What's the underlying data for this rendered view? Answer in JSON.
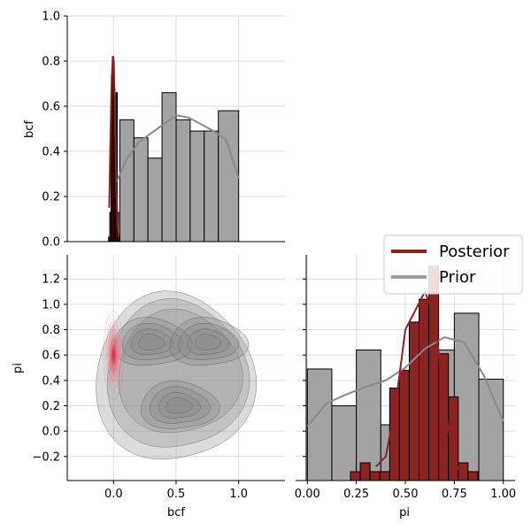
{
  "chart_data": {
    "type": "pairplot",
    "legend": {
      "placement": "right",
      "entries": [
        {
          "label": "Posterior",
          "color": "#8b2323"
        },
        {
          "label": "Prior",
          "color": "#8a8a8a"
        }
      ]
    },
    "grid": true,
    "panels": [
      {
        "id": "bcf_marginal",
        "type": "histogram+kde",
        "xlabel": "",
        "ylabel": "bcf",
        "xlim": [
          -0.37,
          1.37
        ],
        "ylim": [
          0,
          1.0
        ],
        "yticks": [
          0.0,
          0.2,
          0.4,
          0.6,
          0.8,
          1.0
        ],
        "prior_bins": {
          "edges": [
            0.05,
            0.1625,
            0.275,
            0.3875,
            0.5,
            0.6125,
            0.725,
            0.8375,
            1.0
          ],
          "values": [
            0.54,
            0.46,
            0.37,
            0.66,
            0.54,
            0.49,
            0.49,
            0.58
          ]
        },
        "prior_kde": {
          "x": [
            0.02,
            0.1,
            0.2,
            0.3,
            0.4,
            0.5,
            0.6,
            0.7,
            0.8,
            0.9,
            1.0
          ],
          "y": [
            0.26,
            0.36,
            0.44,
            0.48,
            0.52,
            0.56,
            0.55,
            0.52,
            0.49,
            0.45,
            0.28
          ]
        },
        "posterior_bins": {
          "edges": [
            -0.04,
            -0.03,
            -0.02,
            -0.01,
            0.0,
            0.01,
            0.02,
            0.03,
            0.04,
            0.05
          ],
          "values": [
            0.02,
            0.13,
            0.62,
            0.82,
            0.68,
            0.46,
            0.66,
            0.13,
            0.03
          ]
        },
        "posterior_kde": {
          "x": [
            -0.035,
            -0.025,
            -0.015,
            -0.005,
            0.002,
            0.01,
            0.02,
            0.03,
            0.04
          ],
          "y": [
            0.15,
            0.45,
            0.72,
            0.82,
            0.8,
            0.6,
            0.3,
            0.1,
            0.02
          ]
        }
      },
      {
        "id": "joint_bcf_pi",
        "type": "kde2d",
        "xlabel": "bcf",
        "ylabel": "pi",
        "xlim": [
          -0.37,
          1.37
        ],
        "ylim": [
          -0.39,
          1.39
        ],
        "xticks": [
          0.0,
          0.5,
          1.0
        ],
        "yticks": [
          -0.2,
          0.0,
          0.2,
          0.4,
          0.6,
          0.8,
          1.0,
          1.2
        ],
        "prior_modes": [
          {
            "x": 0.3,
            "y": 0.7
          },
          {
            "x": 0.75,
            "y": 0.7
          },
          {
            "x": 0.52,
            "y": 0.2
          }
        ],
        "posterior_mode": {
          "x": 0.0,
          "y": 0.6
        }
      },
      {
        "id": "pi_marginal",
        "type": "histogram+kde",
        "xlabel": "pi",
        "ylabel": "",
        "xlim": [
          -0.06,
          1.06
        ],
        "ylim": [
          -0.39,
          1.39
        ],
        "xticks": [
          0.0,
          0.25,
          0.5,
          0.75,
          1.0
        ],
        "prior_bins": {
          "edges": [
            0.0,
            0.125,
            0.25,
            0.375,
            0.5,
            0.625,
            0.75,
            0.875,
            1.0
          ],
          "values": [
            0.49,
            0.2,
            0.64,
            0.05,
            0.42,
            0.64,
            0.93,
            0.41
          ]
        },
        "prior_kde": {
          "x": [
            0.0,
            0.1,
            0.2,
            0.3,
            0.4,
            0.5,
            0.6,
            0.7,
            0.8,
            0.9,
            1.0
          ],
          "y": [
            0.04,
            0.22,
            0.29,
            0.35,
            0.4,
            0.5,
            0.65,
            0.74,
            0.7,
            0.44,
            0.08
          ]
        },
        "posterior_bins": {
          "edges": [
            0.22,
            0.27,
            0.32,
            0.37,
            0.42,
            0.47,
            0.52,
            0.57,
            0.62,
            0.67,
            0.72,
            0.77,
            0.82,
            0.87
          ],
          "values": [
            -0.32,
            -0.25,
            -0.32,
            -0.32,
            0.34,
            0.48,
            0.86,
            1.04,
            1.3,
            0.61,
            0.27,
            -0.25,
            -0.32
          ],
          "baseline": -0.39
        },
        "posterior_kde": {
          "x": [
            0.35,
            0.4,
            0.45,
            0.5,
            0.55,
            0.6,
            0.65,
            0.7,
            0.75,
            0.8
          ],
          "y": [
            -0.28,
            -0.2,
            0.2,
            0.8,
            0.95,
            1.1,
            0.9,
            0.2,
            -0.25,
            -0.36
          ]
        }
      }
    ]
  }
}
